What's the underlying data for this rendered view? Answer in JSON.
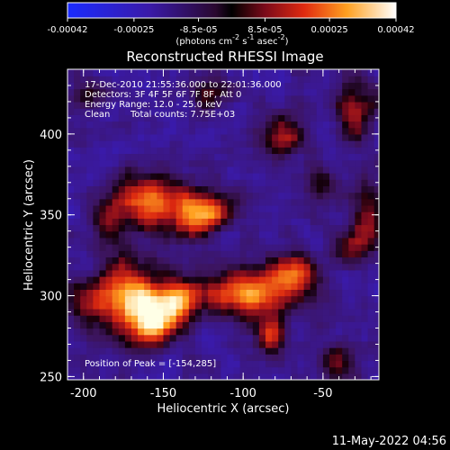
{
  "colorbar": {
    "ticks": [
      "-0.00042",
      "-0.00025",
      "-8.5e-05",
      "8.5e-05",
      "0.00025",
      "0.00042"
    ],
    "tick_values": [
      -0.00042,
      -0.00025,
      -8.5e-05,
      8.5e-05,
      0.00025,
      0.00042
    ],
    "range": [
      -0.00042,
      0.00042
    ],
    "units_html": "(photons cm<tspan dy='-5' font-size='8'>-2</tspan><tspan dy='5'> s</tspan><tspan dy='-5' font-size='8'>-1</tspan><tspan dy='5'> asec</tspan><tspan dy='-5' font-size='8'>-2</tspan><tspan dy='5'>)</tspan>",
    "units": "(photons cm-2 s-1 asec-2)",
    "colormap": "blue-black-red-yellow-white"
  },
  "chart_data": {
    "type": "heatmap",
    "title": "Reconstructed RHESSI Image",
    "xlabel": "Heliocentric X (arcsec)",
    "ylabel": "Heliocentric Y (arcsec)",
    "xlim": [
      -210,
      -15
    ],
    "ylim": [
      248,
      440
    ],
    "x_ticks": [
      -200,
      -150,
      -100,
      -50
    ],
    "y_ticks": [
      250,
      300,
      350,
      400
    ],
    "x_tick_labels": [
      "-200",
      "-150",
      "-100",
      "-50"
    ],
    "y_tick_labels": [
      "250",
      "300",
      "350",
      "400"
    ],
    "annotations": [
      "17-Dec-2010 21:55:36.000 to 22:01:36.000",
      "Detectors: 3F 4F 5F 6F 7F 8F, Att 0",
      "Energy Range: 12.0 - 25.0 keV",
      "Clean",
      "Total counts: 7.75E+03"
    ],
    "peak_label": "Position of Peak = [-154,285]",
    "peak": [
      -154,
      285
    ],
    "sources": [
      {
        "x": -160,
        "y": 358,
        "amp": 1.05,
        "sx": 18,
        "sy": 12
      },
      {
        "x": -130,
        "y": 350,
        "amp": 0.85,
        "sx": 12,
        "sy": 10
      },
      {
        "x": -115,
        "y": 352,
        "amp": 0.6,
        "sx": 8,
        "sy": 7
      },
      {
        "x": -172,
        "y": 300,
        "amp": 1.2,
        "sx": 14,
        "sy": 16
      },
      {
        "x": -154,
        "y": 285,
        "amp": 1.3,
        "sx": 12,
        "sy": 10
      },
      {
        "x": -140,
        "y": 300,
        "amp": 0.9,
        "sx": 10,
        "sy": 8
      },
      {
        "x": -95,
        "y": 302,
        "amp": 1.15,
        "sx": 22,
        "sy": 10
      },
      {
        "x": -70,
        "y": 315,
        "amp": 0.8,
        "sx": 12,
        "sy": 8
      },
      {
        "x": -82,
        "y": 277,
        "amp": 0.9,
        "sx": 6,
        "sy": 8
      },
      {
        "x": -75,
        "y": 400,
        "amp": 0.7,
        "sx": 10,
        "sy": 10
      },
      {
        "x": -30,
        "y": 415,
        "amp": 0.75,
        "sx": 8,
        "sy": 12
      },
      {
        "x": -22,
        "y": 350,
        "amp": 0.7,
        "sx": 7,
        "sy": 14
      },
      {
        "x": -35,
        "y": 330,
        "amp": 0.55,
        "sx": 8,
        "sy": 8
      },
      {
        "x": -40,
        "y": 260,
        "amp": 0.6,
        "sx": 8,
        "sy": 8
      },
      {
        "x": -200,
        "y": 295,
        "amp": 0.55,
        "sx": 8,
        "sy": 10
      },
      {
        "x": -195,
        "y": 425,
        "amp": 0.45,
        "sx": 8,
        "sy": 6
      },
      {
        "x": -120,
        "y": 425,
        "amp": 0.5,
        "sx": 10,
        "sy": 6
      },
      {
        "x": -50,
        "y": 370,
        "amp": 0.45,
        "sx": 8,
        "sy": 8
      },
      {
        "x": -185,
        "y": 345,
        "amp": 0.45,
        "sx": 6,
        "sy": 8
      }
    ],
    "background": -0.45,
    "noise": 0.35
  },
  "timestamp": "11-May-2022 04:56"
}
